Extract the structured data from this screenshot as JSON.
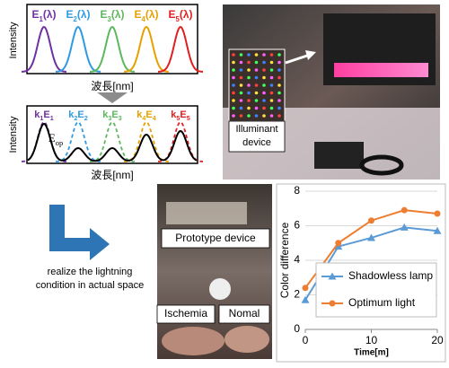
{
  "spectra": {
    "top": {
      "y_label": "Intensity",
      "x_label": "波長[nm]",
      "peaks": [
        {
          "parts": [
            "E",
            "1",
            "(λ)"
          ],
          "color": "#7030a0"
        },
        {
          "parts": [
            "E",
            "2",
            "(λ)"
          ],
          "color": "#2e9be0"
        },
        {
          "parts": [
            "E",
            "3",
            "(λ)"
          ],
          "color": "#5cb85c"
        },
        {
          "parts": [
            "E",
            "4",
            "(λ)"
          ],
          "color": "#e6a100"
        },
        {
          "parts": [
            "E",
            "5",
            "(λ)"
          ],
          "color": "#e02020"
        }
      ]
    },
    "bottom": {
      "y_label": "Intensity",
      "x_label": "波長[nm]",
      "sum_label": [
        "E",
        "op"
      ],
      "peaks": [
        {
          "parts": [
            "k",
            "1",
            "E",
            "1"
          ],
          "color": "#7030a0"
        },
        {
          "parts": [
            "k",
            "2",
            "E",
            "2"
          ],
          "color": "#2e9be0"
        },
        {
          "parts": [
            "k",
            "3",
            "E",
            "3"
          ],
          "color": "#5cb85c"
        },
        {
          "parts": [
            "k",
            "4",
            "E",
            "4"
          ],
          "color": "#e6a100"
        },
        {
          "parts": [
            "k",
            "5",
            "E",
            "5"
          ],
          "color": "#e02020"
        }
      ]
    }
  },
  "photos": {
    "illuminant_label": [
      "Illuminant",
      "device"
    ],
    "prototype_label": "Prototype device",
    "ischemia_label": "Ischemia",
    "normal_label": "Nomal"
  },
  "caption": [
    "realize the lightning",
    "condition in actual space"
  ],
  "chart_data": {
    "type": "line",
    "x_label": "Time[m]",
    "y_label": "Color difference",
    "x": [
      0,
      5,
      10,
      15,
      20
    ],
    "series": [
      {
        "name": "Shadowless lamp",
        "color": "#5b9bd5",
        "marker": "triangle",
        "values": [
          1.7,
          4.8,
          5.3,
          5.9,
          5.7
        ]
      },
      {
        "name": "Optimum light",
        "color": "#ed7d31",
        "marker": "circle",
        "values": [
          2.4,
          5.0,
          6.3,
          6.9,
          6.7
        ]
      }
    ],
    "xlim": [
      0,
      20
    ],
    "xticks": [
      0,
      10,
      20
    ],
    "ylim": [
      0,
      8
    ],
    "yticks": [
      0,
      2,
      4,
      6,
      8
    ],
    "grid": true
  }
}
